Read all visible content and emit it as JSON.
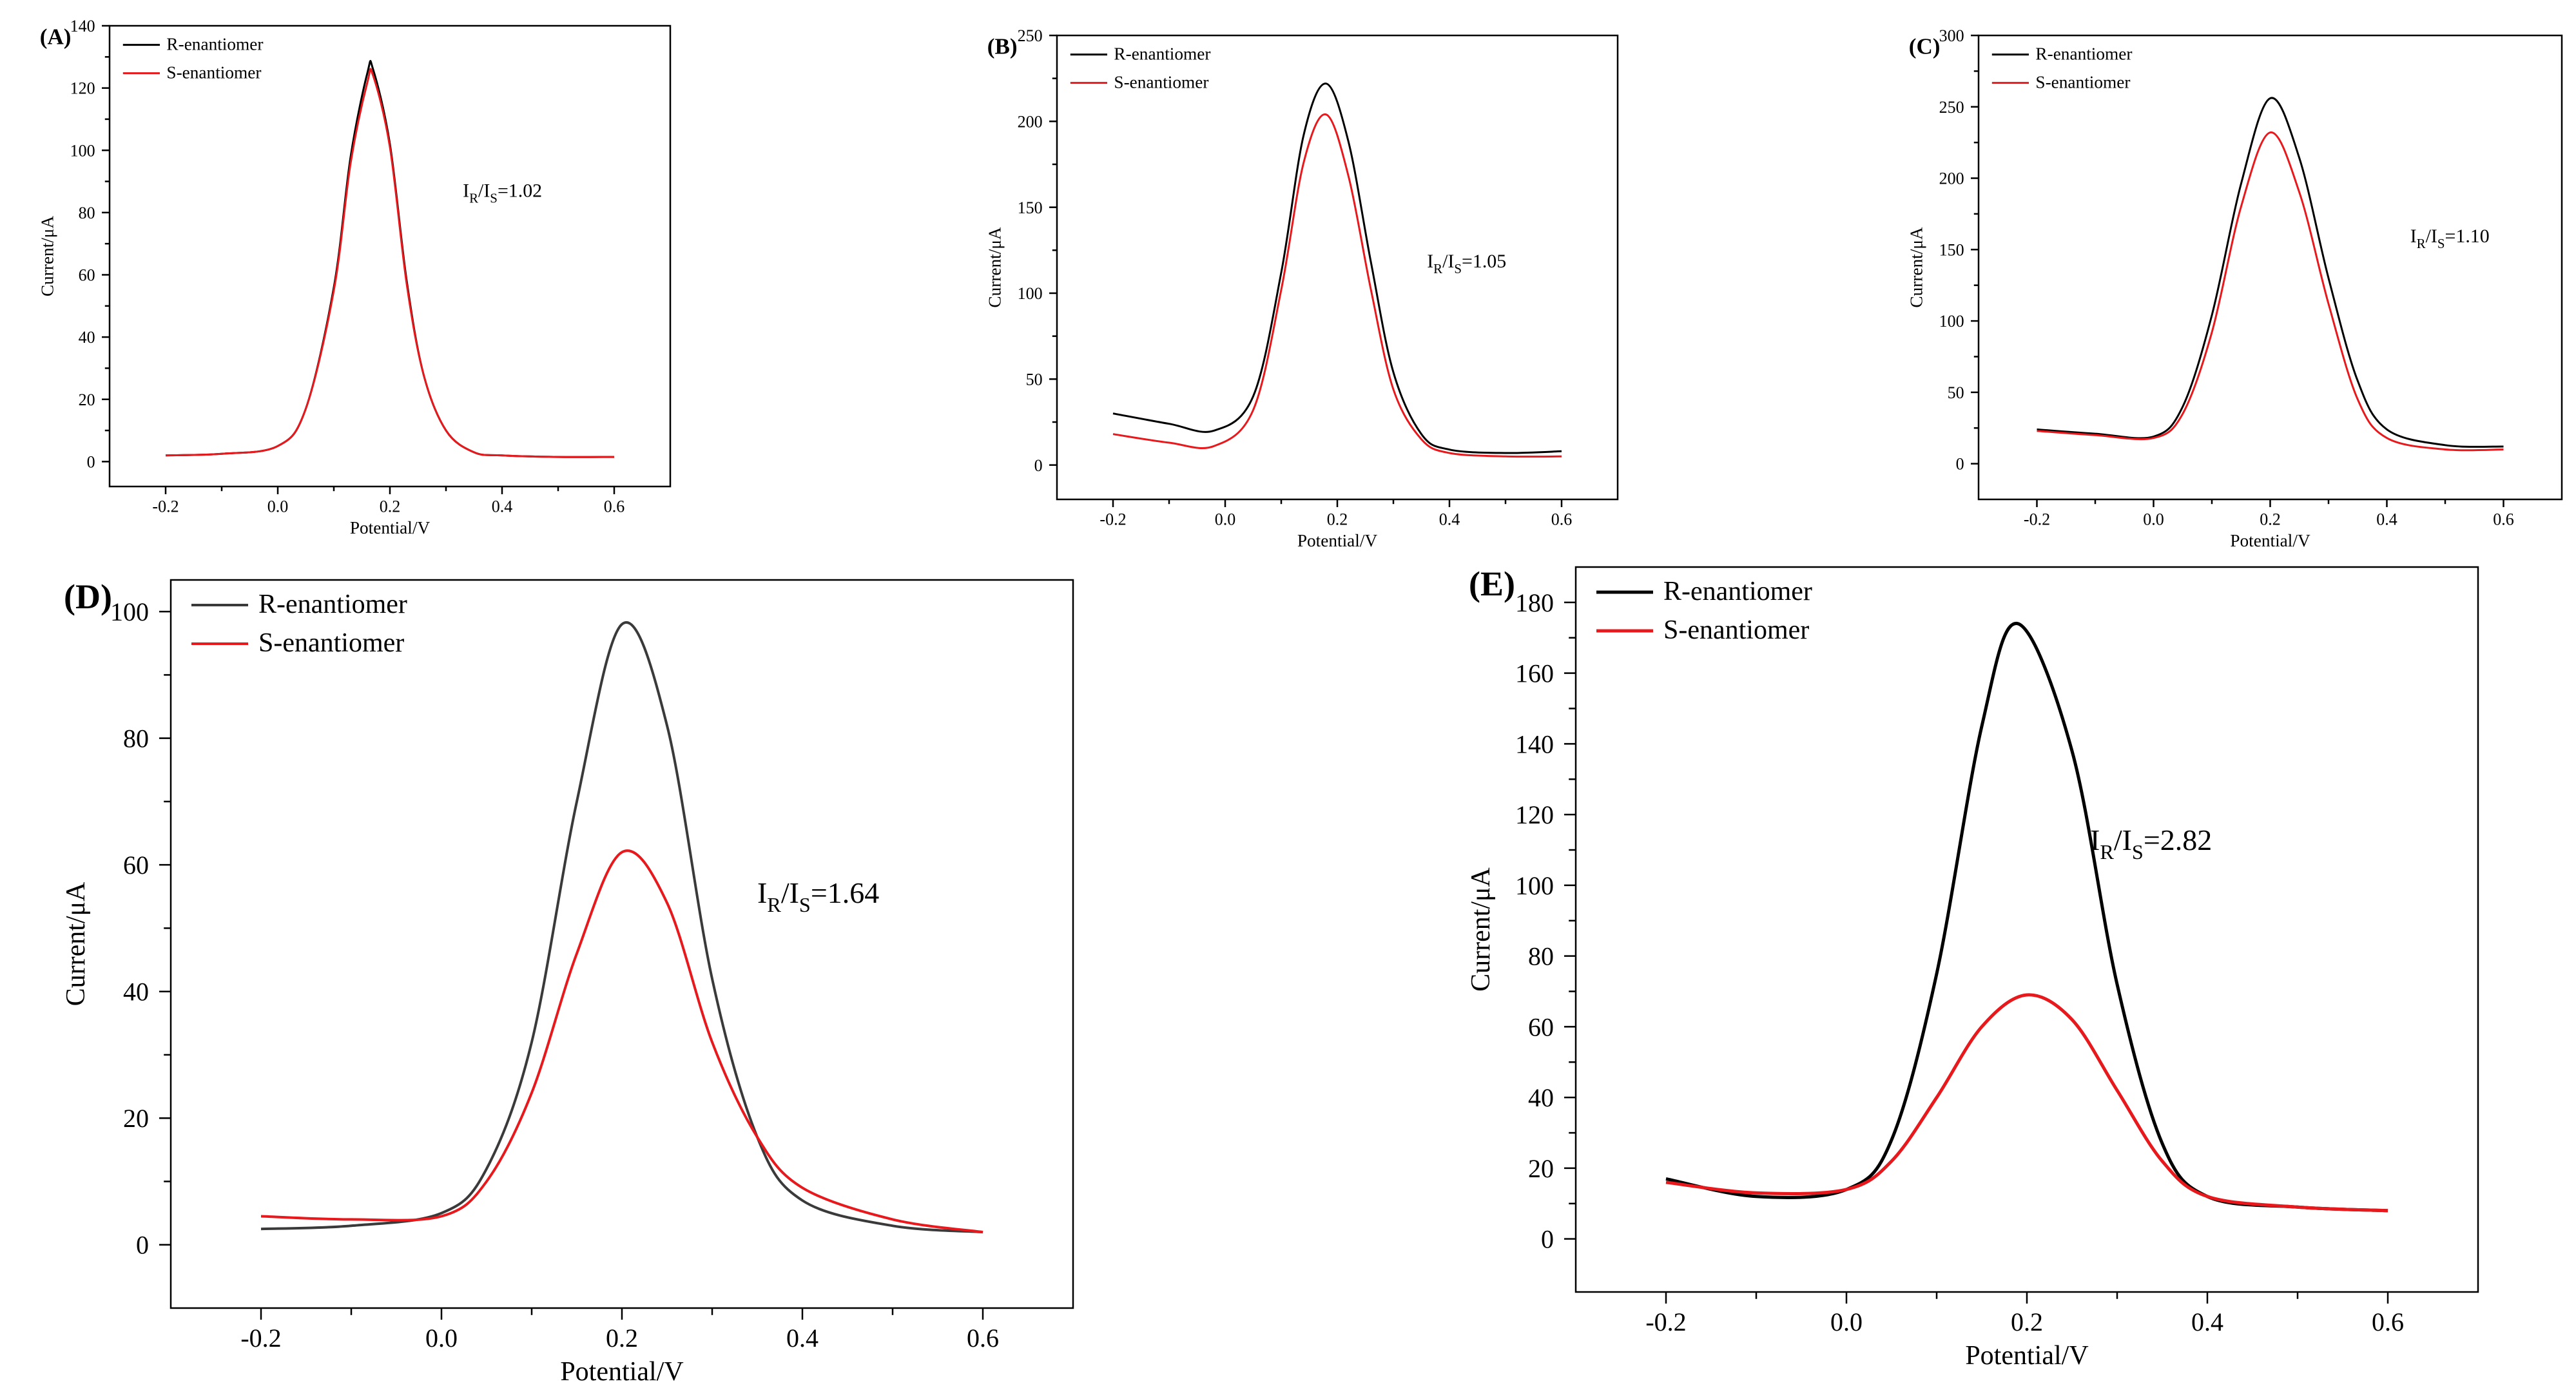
{
  "colors": {
    "r_series": "#000000",
    "s_series": "#e8191c",
    "r_series_light": "#3a3a3a"
  },
  "chart_data": [
    {
      "id": "A",
      "type": "line",
      "panel_label": "(A)",
      "xlabel": "Potential/V",
      "ylabel": "Current/μA",
      "xlim": [
        -0.3,
        0.7
      ],
      "ylim": [
        -8,
        140
      ],
      "xticks": [
        -0.2,
        0.0,
        0.2,
        0.4,
        0.6
      ],
      "xtick_labels": [
        "-0.2",
        "0.0",
        "0.2",
        "0.4",
        "0.6"
      ],
      "yticks": [
        0,
        20,
        40,
        60,
        80,
        100,
        120,
        140
      ],
      "ytick_labels": [
        "0",
        "20",
        "40",
        "60",
        "80",
        "100",
        "120",
        "140"
      ],
      "legend": [
        "R-enantiomer",
        "S-enantiomer"
      ],
      "legend_position": "top-left",
      "ratio": {
        "base": "I",
        "sub1": "R",
        "mid": "/I",
        "sub2": "S",
        "value": "=1.02"
      },
      "ratio_anchor": [
        0.33,
        85
      ],
      "series": [
        {
          "name": "R-enantiomer",
          "x": [
            -0.2,
            -0.1,
            0.0,
            0.05,
            0.1,
            0.13,
            0.16,
            0.17,
            0.2,
            0.23,
            0.26,
            0.3,
            0.35,
            0.4,
            0.5,
            0.6
          ],
          "y": [
            2,
            2.5,
            5,
            17,
            56,
            98,
            125,
            126,
            102,
            58,
            28,
            10,
            3,
            2,
            1.5,
            1.5
          ]
        },
        {
          "name": "S-enantiomer",
          "x": [
            -0.2,
            -0.1,
            0.0,
            0.05,
            0.1,
            0.13,
            0.16,
            0.17,
            0.2,
            0.23,
            0.26,
            0.3,
            0.35,
            0.4,
            0.5,
            0.6
          ],
          "y": [
            2,
            2.5,
            5,
            17,
            55,
            96,
            122,
            124,
            101,
            57,
            28,
            10,
            3,
            2,
            1.5,
            1.5
          ]
        }
      ]
    },
    {
      "id": "B",
      "type": "line",
      "panel_label": "(B)",
      "xlabel": "Potential/V",
      "ylabel": "Current/μA",
      "xlim": [
        -0.3,
        0.7
      ],
      "ylim": [
        -20,
        250
      ],
      "xticks": [
        -0.2,
        0.0,
        0.2,
        0.4,
        0.6
      ],
      "xtick_labels": [
        "-0.2",
        "0.0",
        "0.2",
        "0.4",
        "0.6"
      ],
      "yticks": [
        0,
        50,
        100,
        150,
        200,
        250
      ],
      "ytick_labels": [
        "0",
        "50",
        "100",
        "150",
        "200",
        "250"
      ],
      "legend": [
        "R-enantiomer",
        "S-enantiomer"
      ],
      "legend_position": "top-left",
      "ratio": {
        "base": "I",
        "sub1": "R",
        "mid": "/I",
        "sub2": "S",
        "value": "=1.05"
      },
      "ratio_anchor": [
        0.36,
        115
      ],
      "series": [
        {
          "name": "R-enantiomer",
          "x": [
            -0.2,
            -0.1,
            -0.02,
            0.05,
            0.1,
            0.14,
            0.18,
            0.22,
            0.26,
            0.3,
            0.35,
            0.4,
            0.5,
            0.6
          ],
          "y": [
            30,
            24,
            20,
            40,
            112,
            192,
            222,
            188,
            118,
            54,
            18,
            9,
            7,
            8
          ]
        },
        {
          "name": "S-enantiomer",
          "x": [
            -0.2,
            -0.1,
            -0.02,
            0.05,
            0.1,
            0.14,
            0.18,
            0.22,
            0.26,
            0.3,
            0.35,
            0.4,
            0.5,
            0.6
          ],
          "y": [
            18,
            13,
            11,
            32,
            102,
            176,
            204,
            168,
            102,
            44,
            15,
            7,
            5,
            5
          ]
        }
      ]
    },
    {
      "id": "C",
      "type": "line",
      "panel_label": "(C)",
      "xlabel": "Potential/V",
      "ylabel": "Current/μA",
      "xlim": [
        -0.3,
        0.7
      ],
      "ylim": [
        -25,
        300
      ],
      "xticks": [
        -0.2,
        0.0,
        0.2,
        0.4,
        0.6
      ],
      "xtick_labels": [
        "-0.2",
        "0.0",
        "0.2",
        "0.4",
        "0.6"
      ],
      "yticks": [
        0,
        50,
        100,
        150,
        200,
        250,
        300
      ],
      "ytick_labels": [
        "0",
        "50",
        "100",
        "150",
        "200",
        "250",
        "300"
      ],
      "legend": [
        "R-enantiomer",
        "S-enantiomer"
      ],
      "legend_position": "top-left",
      "ratio": {
        "base": "I",
        "sub1": "R",
        "mid": "/I",
        "sub2": "S",
        "value": "=1.10"
      },
      "ratio_anchor": [
        0.44,
        155
      ],
      "series": [
        {
          "name": "R-enantiomer",
          "x": [
            -0.2,
            -0.1,
            0.0,
            0.05,
            0.1,
            0.15,
            0.2,
            0.25,
            0.3,
            0.35,
            0.4,
            0.5,
            0.6
          ],
          "y": [
            24,
            21,
            19,
            40,
            104,
            196,
            256,
            214,
            130,
            58,
            24,
            13,
            12
          ]
        },
        {
          "name": "S-enantiomer",
          "x": [
            -0.2,
            -0.1,
            0.0,
            0.05,
            0.1,
            0.15,
            0.2,
            0.25,
            0.3,
            0.35,
            0.4,
            0.5,
            0.6
          ],
          "y": [
            23,
            20,
            18,
            35,
            92,
            180,
            232,
            190,
            112,
            45,
            18,
            10,
            10
          ]
        }
      ]
    },
    {
      "id": "D",
      "type": "line",
      "panel_label": "(D)",
      "xlabel": "Potential/V",
      "ylabel": "Current/μA",
      "xlim": [
        -0.3,
        0.7
      ],
      "ylim": [
        -10,
        105
      ],
      "xticks": [
        -0.2,
        0.0,
        0.2,
        0.4,
        0.6
      ],
      "xtick_labels": [
        "-0.2",
        "0.0",
        "0.2",
        "0.4",
        "0.6"
      ],
      "yticks": [
        0,
        20,
        40,
        60,
        80,
        100
      ],
      "ytick_labels": [
        "0",
        "20",
        "40",
        "60",
        "80",
        "100"
      ],
      "legend": [
        "R-enantiomer",
        "S-enantiomer"
      ],
      "legend_position": "top-left",
      "ratio": {
        "base": "I",
        "sub1": "R",
        "mid": "/I",
        "sub2": "S",
        "value": "=1.64"
      },
      "ratio_anchor": [
        0.35,
        54
      ],
      "series": [
        {
          "name": "R-enantiomer",
          "x": [
            -0.2,
            -0.1,
            0.0,
            0.05,
            0.1,
            0.15,
            0.2,
            0.25,
            0.3,
            0.35,
            0.4,
            0.5,
            0.6
          ],
          "y": [
            2.5,
            3,
            5,
            12,
            32,
            70,
            98,
            82,
            42,
            17,
            7,
            3,
            2
          ]
        },
        {
          "name": "S-enantiomer",
          "x": [
            -0.2,
            -0.1,
            0.0,
            0.05,
            0.1,
            0.15,
            0.2,
            0.25,
            0.3,
            0.35,
            0.4,
            0.5,
            0.6
          ],
          "y": [
            4.5,
            4,
            4.5,
            10,
            24,
            46,
            62,
            54,
            32,
            17,
            9,
            4,
            2
          ]
        }
      ]
    },
    {
      "id": "E",
      "type": "line",
      "panel_label": "(E)",
      "xlabel": "Potential/V",
      "ylabel": "Current/μA",
      "xlim": [
        -0.3,
        0.7
      ],
      "ylim": [
        -15,
        190
      ],
      "xticks": [
        -0.2,
        0.0,
        0.2,
        0.4,
        0.6
      ],
      "xtick_labels": [
        "-0.2",
        "0.0",
        "0.2",
        "0.4",
        "0.6"
      ],
      "yticks": [
        0,
        20,
        40,
        60,
        80,
        100,
        120,
        140,
        160,
        180
      ],
      "ytick_labels": [
        "0",
        "20",
        "40",
        "60",
        "80",
        "100",
        "120",
        "140",
        "160",
        "180"
      ],
      "legend": [
        "R-enantiomer",
        "S-enantiomer"
      ],
      "legend_position": "top-left",
      "ratio": {
        "base": "I",
        "sub1": "R",
        "mid": "/I",
        "sub2": "S",
        "value": "=2.82"
      },
      "ratio_anchor": [
        0.27,
        110
      ],
      "series": [
        {
          "name": "R-enantiomer",
          "x": [
            -0.2,
            -0.1,
            0.0,
            0.05,
            0.1,
            0.15,
            0.19,
            0.25,
            0.3,
            0.35,
            0.4,
            0.5,
            0.6
          ],
          "y": [
            17,
            12,
            14,
            28,
            75,
            145,
            174,
            138,
            72,
            27,
            12,
            9,
            8
          ]
        },
        {
          "name": "S-enantiomer",
          "x": [
            -0.2,
            -0.1,
            0.0,
            0.05,
            0.1,
            0.15,
            0.2,
            0.25,
            0.3,
            0.35,
            0.4,
            0.5,
            0.6
          ],
          "y": [
            16,
            13,
            14,
            22,
            40,
            60,
            69,
            62,
            42,
            22,
            12,
            9,
            8
          ]
        }
      ]
    }
  ]
}
